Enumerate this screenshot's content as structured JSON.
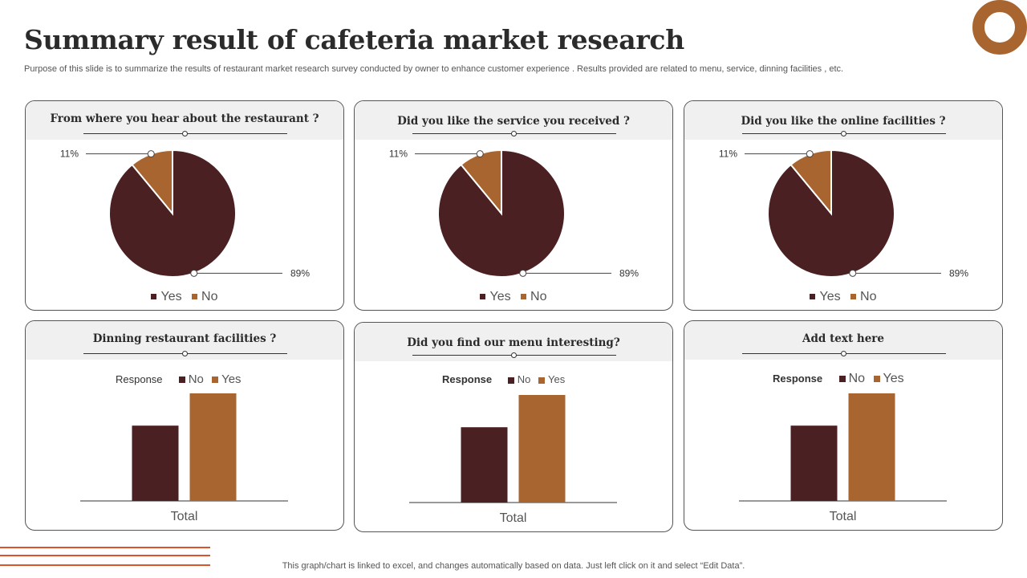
{
  "title": "Summary result of cafeteria market research",
  "subtitle": "Purpose of this slide is to summarize the results of  restaurant market research survey conducted by  owner to enhance customer experience . Results provided are related to menu, service, dinning facilities , etc.",
  "footer": "This graph/chart is linked to excel,  and changes automatically based on data. Just left click on it and select “Edit Data”.",
  "colors": {
    "dark": "#4a2022",
    "accent": "#a8652f",
    "footer_accent": "#d9542a"
  },
  "cards": [
    {
      "question": "From where you hear about the restaurant ?"
    },
    {
      "question": "Did you like the service  you received ?"
    },
    {
      "question": "Did you  like the online facilities ?"
    },
    {
      "question": "Dinning restaurant facilities ?"
    },
    {
      "question": "Did you find our menu interesting?"
    },
    {
      "question": "Add text here"
    }
  ],
  "chart_data": [
    {
      "type": "pie",
      "labels": [
        "Yes",
        "No"
      ],
      "values": [
        89,
        11
      ],
      "data_labels": [
        "89%",
        "11%"
      ],
      "colors": [
        "#4a2022",
        "#a8652f"
      ],
      "legend": "bottom"
    },
    {
      "type": "pie",
      "labels": [
        "Yes",
        "No"
      ],
      "values": [
        89,
        11
      ],
      "data_labels": [
        "89%",
        "11%"
      ],
      "colors": [
        "#4a2022",
        "#a8652f"
      ],
      "legend": "bottom"
    },
    {
      "type": "pie",
      "labels": [
        "Yes",
        "No"
      ],
      "values": [
        89,
        11
      ],
      "data_labels": [
        "89%",
        "11%"
      ],
      "colors": [
        "#4a2022",
        "#a8652f"
      ],
      "legend": "bottom"
    },
    {
      "type": "bar",
      "legend_title": "Response",
      "categories": [
        "Total"
      ],
      "series": [
        {
          "name": "No",
          "values": [
            70
          ]
        },
        {
          "name": "Yes",
          "values": [
            100
          ]
        }
      ],
      "colors": [
        "#4a2022",
        "#a8652f"
      ],
      "legend": "top"
    },
    {
      "type": "bar",
      "legend_title": "Response",
      "categories": [
        "Total"
      ],
      "series": [
        {
          "name": "No",
          "values": [
            70
          ]
        },
        {
          "name": "Yes",
          "values": [
            100
          ]
        }
      ],
      "colors": [
        "#4a2022",
        "#a8652f"
      ],
      "legend": "top"
    },
    {
      "type": "bar",
      "legend_title": "Response",
      "categories": [
        "Total"
      ],
      "series": [
        {
          "name": "No",
          "values": [
            70
          ]
        },
        {
          "name": "Yes",
          "values": [
            100
          ]
        }
      ],
      "colors": [
        "#4a2022",
        "#a8652f"
      ],
      "legend": "top"
    }
  ]
}
